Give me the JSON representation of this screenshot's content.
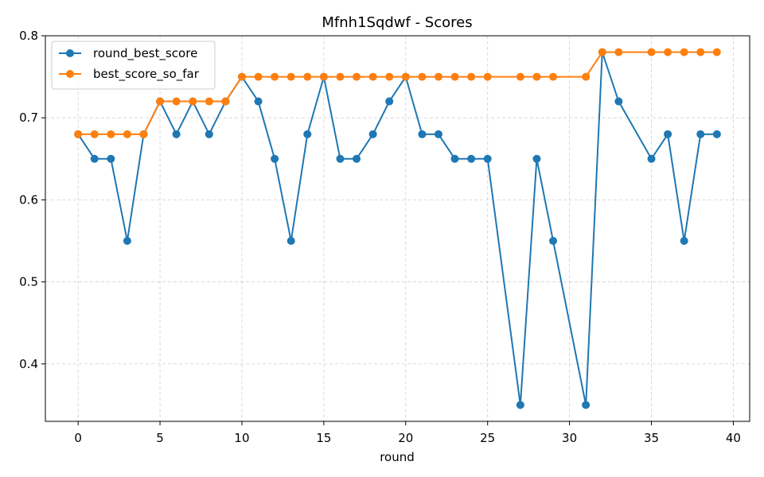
{
  "chart_data": {
    "type": "line",
    "title": "Mfnh1Sqdwf - Scores",
    "xlabel": "round",
    "ylabel": "",
    "xlim": [
      -2,
      41
    ],
    "ylim": [
      0.33,
      0.8
    ],
    "xticks": [
      0,
      5,
      10,
      15,
      20,
      25,
      30,
      35,
      40
    ],
    "yticks": [
      0.4,
      0.5,
      0.6,
      0.7,
      0.8
    ],
    "grid": true,
    "legend_position": "top-left",
    "series": [
      {
        "name": "round_best_score",
        "color": "#1f77b4",
        "x": [
          0,
          1,
          2,
          3,
          4,
          5,
          6,
          7,
          8,
          9,
          10,
          11,
          12,
          13,
          14,
          15,
          16,
          17,
          18,
          19,
          20,
          21,
          22,
          23,
          24,
          25,
          27,
          28,
          29,
          31,
          32,
          33,
          35,
          36,
          37,
          38,
          39
        ],
        "y": [
          0.68,
          0.65,
          0.65,
          0.55,
          0.68,
          0.72,
          0.68,
          0.72,
          0.68,
          0.72,
          0.75,
          0.72,
          0.65,
          0.55,
          0.68,
          0.75,
          0.65,
          0.65,
          0.68,
          0.72,
          0.75,
          0.68,
          0.68,
          0.65,
          0.65,
          0.65,
          0.35,
          0.65,
          0.55,
          0.35,
          0.78,
          0.72,
          0.65,
          0.68,
          0.55,
          0.68,
          0.68
        ]
      },
      {
        "name": "best_score_so_far",
        "color": "#ff7f0e",
        "x": [
          0,
          1,
          2,
          3,
          4,
          5,
          6,
          7,
          8,
          9,
          10,
          11,
          12,
          13,
          14,
          15,
          16,
          17,
          18,
          19,
          20,
          21,
          22,
          23,
          24,
          25,
          27,
          28,
          29,
          31,
          32,
          33,
          35,
          36,
          37,
          38,
          39
        ],
        "y": [
          0.68,
          0.68,
          0.68,
          0.68,
          0.68,
          0.72,
          0.72,
          0.72,
          0.72,
          0.72,
          0.75,
          0.75,
          0.75,
          0.75,
          0.75,
          0.75,
          0.75,
          0.75,
          0.75,
          0.75,
          0.75,
          0.75,
          0.75,
          0.75,
          0.75,
          0.75,
          0.75,
          0.75,
          0.75,
          0.75,
          0.78,
          0.78,
          0.78,
          0.78,
          0.78,
          0.78,
          0.78
        ]
      }
    ]
  }
}
